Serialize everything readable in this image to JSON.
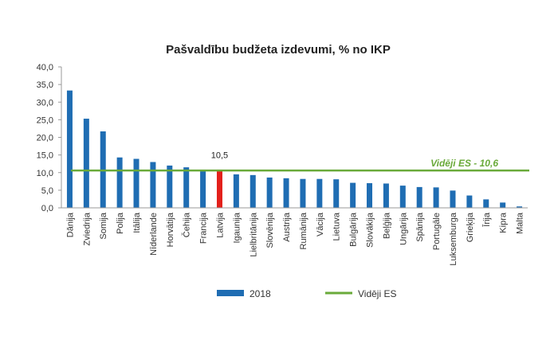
{
  "chart_data": {
    "type": "bar",
    "title": "Pašvaldību budžeta izdevumi, % no IKP",
    "categories": [
      "Dānija",
      "Zviedrija",
      "Somija",
      "Polija",
      "Itālija",
      "Nīderlande",
      "Horvātija",
      "Čehija",
      "Francija",
      "Latvija",
      "Igaunija",
      "Lielbritānija",
      "Slovēnija",
      "Austrija",
      "Rumānija",
      "Vācija",
      "Lietuva",
      "Bulgārija",
      "Slovākija",
      "Beļģija",
      "Ungārija",
      "Spānija",
      "Portugāle",
      "Luksemburga",
      "Grieķija",
      "Īrija",
      "Kipra",
      "Malta"
    ],
    "series": [
      {
        "name": "2018",
        "values": [
          33.3,
          25.3,
          21.7,
          14.3,
          13.9,
          13.0,
          12.0,
          11.5,
          10.7,
          10.5,
          9.5,
          9.3,
          8.6,
          8.4,
          8.2,
          8.2,
          8.1,
          7.1,
          7.0,
          6.9,
          6.3,
          5.9,
          5.8,
          4.9,
          3.5,
          2.4,
          1.5,
          0.4
        ]
      },
      {
        "name": "Vidēji ES",
        "type": "line",
        "value": 10.6
      }
    ],
    "ylim": [
      0,
      40
    ],
    "yticks": [
      "0,0",
      "5,0",
      "10,0",
      "15,0",
      "20,0",
      "25,0",
      "30,0",
      "35,0",
      "40,0"
    ],
    "highlight_category": "Latvija",
    "data_label": "10,5",
    "average_label": "Vidēji ES  - 10,6",
    "legend_position": "bottom",
    "colors": {
      "bar": "#1f6db3",
      "highlight": "#e3201b",
      "average": "#6aaa3a"
    }
  }
}
